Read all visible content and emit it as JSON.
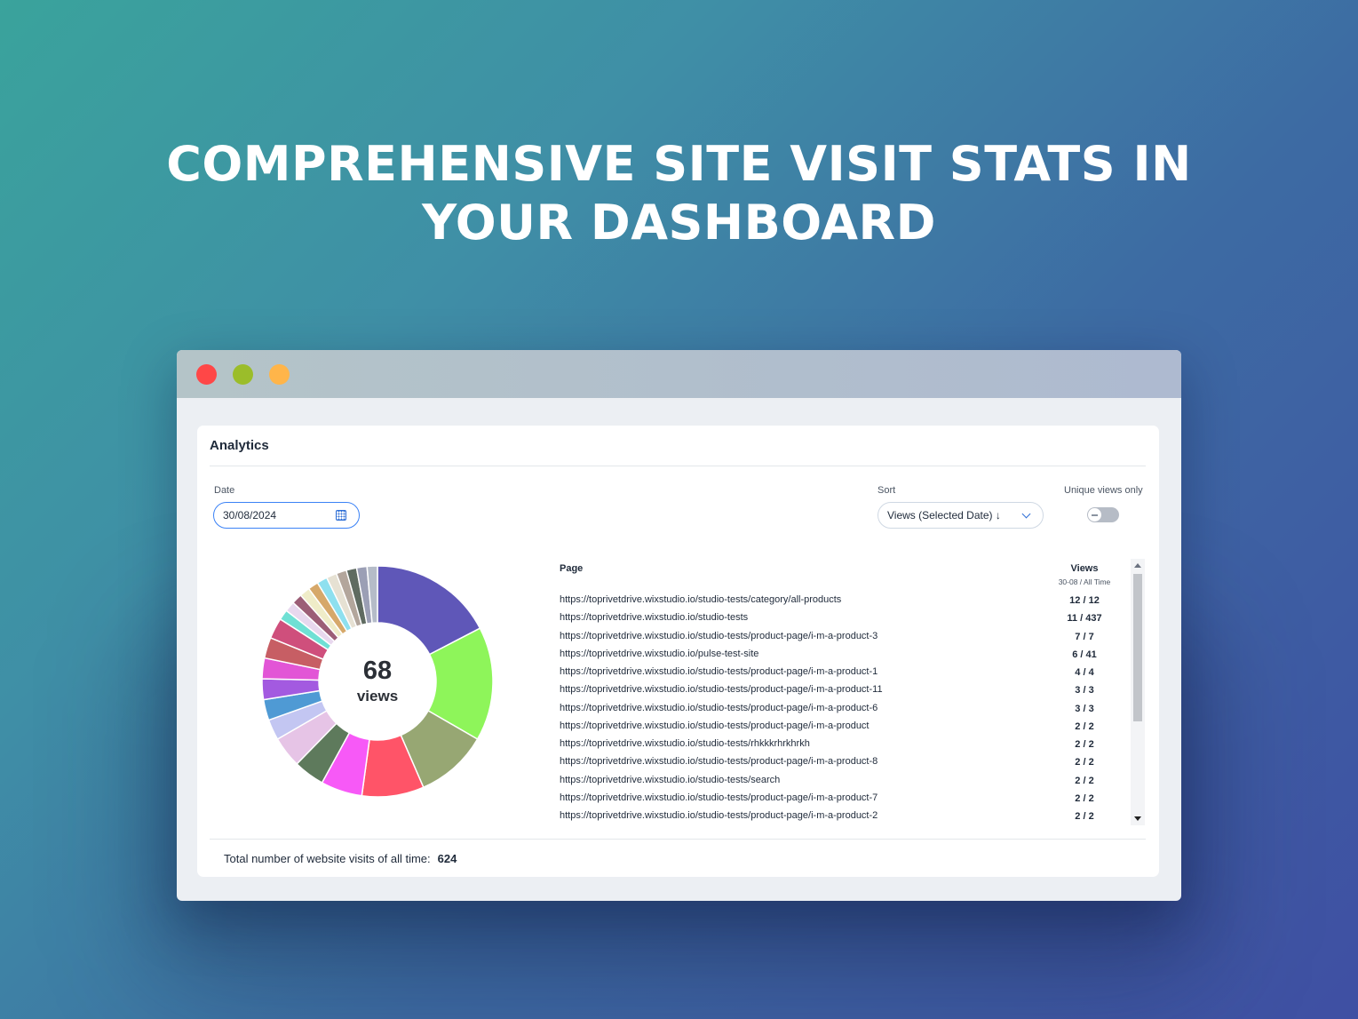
{
  "headline": {
    "line1": "COMPREHENSIVE SITE VISIT STATS IN",
    "line2": "YOUR DASHBOARD"
  },
  "card": {
    "title": "Analytics"
  },
  "filters": {
    "date_label": "Date",
    "date_value": "30/08/2024",
    "sort_label": "Sort",
    "sort_value": "Views (Selected Date) ↓",
    "unique_label": "Unique views only",
    "unique_enabled": false
  },
  "donut": {
    "total": "68",
    "unit": "views"
  },
  "table": {
    "col_page": "Page",
    "col_views": "Views",
    "col_views_sub": "30-08 / All Time",
    "rows": [
      {
        "url": "https://toprivetdrive.wixstudio.io/studio-tests/category/all-products",
        "views": "12 / 12"
      },
      {
        "url": "https://toprivetdrive.wixstudio.io/studio-tests",
        "views": "11 / 437"
      },
      {
        "url": "https://toprivetdrive.wixstudio.io/studio-tests/product-page/i-m-a-product-3",
        "views": "7 / 7"
      },
      {
        "url": "https://toprivetdrive.wixstudio.io/pulse-test-site",
        "views": "6 / 41"
      },
      {
        "url": "https://toprivetdrive.wixstudio.io/studio-tests/product-page/i-m-a-product-1",
        "views": "4 / 4"
      },
      {
        "url": "https://toprivetdrive.wixstudio.io/studio-tests/product-page/i-m-a-product-11",
        "views": "3 / 3"
      },
      {
        "url": "https://toprivetdrive.wixstudio.io/studio-tests/product-page/i-m-a-product-6",
        "views": "3 / 3"
      },
      {
        "url": "https://toprivetdrive.wixstudio.io/studio-tests/product-page/i-m-a-product",
        "views": "2 / 2"
      },
      {
        "url": "https://toprivetdrive.wixstudio.io/studio-tests/rhkkkrhrkhrkh",
        "views": "2 / 2"
      },
      {
        "url": "https://toprivetdrive.wixstudio.io/studio-tests/product-page/i-m-a-product-8",
        "views": "2 / 2"
      },
      {
        "url": "https://toprivetdrive.wixstudio.io/studio-tests/search",
        "views": "2 / 2"
      },
      {
        "url": "https://toprivetdrive.wixstudio.io/studio-tests/product-page/i-m-a-product-7",
        "views": "2 / 2"
      },
      {
        "url": "https://toprivetdrive.wixstudio.io/studio-tests/product-page/i-m-a-product-2",
        "views": "2 / 2"
      }
    ]
  },
  "footer": {
    "label": "Total number of website visits of all time:",
    "value": "624"
  },
  "chart_data": {
    "type": "pie",
    "values": [
      12,
      11,
      7,
      6,
      4,
      3,
      3,
      2,
      2,
      2,
      2,
      2,
      2,
      1,
      1,
      1,
      1,
      1,
      1,
      1,
      1,
      1,
      1,
      1
    ],
    "colors": [
      "#5f57b8",
      "#8ef55a",
      "#97a773",
      "#ff5468",
      "#f759f7",
      "#5e7a5c",
      "#e6c4e6",
      "#c3c6f2",
      "#4f9ad4",
      "#a35ae0",
      "#e255d6",
      "#c75e64",
      "#cf4f7c",
      "#6fe0d4",
      "#e8d8ee",
      "#9c5e76",
      "#efecc8",
      "#d6a86a",
      "#8ee0ef",
      "#e6e1d3",
      "#b3a69c",
      "#5f6b61",
      "#9b9fb5",
      "#b5bcc8"
    ]
  }
}
